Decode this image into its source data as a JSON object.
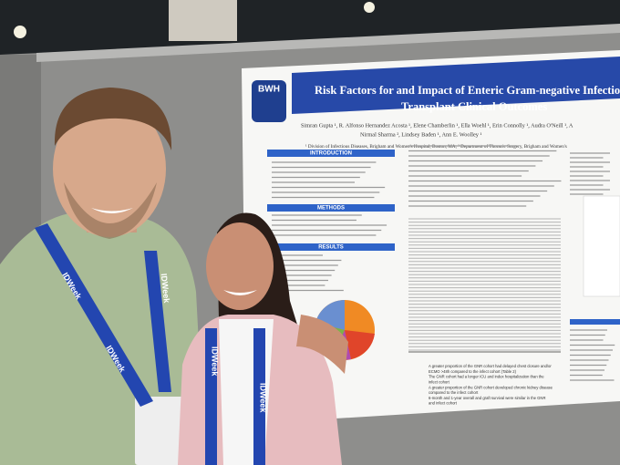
{
  "poster": {
    "logo": "BWH",
    "title": [
      "Risk Factors for and Impact of Enteric Gram-negative Infections o",
      "Transplant Clinical Outcomes"
    ],
    "authors": [
      "Simran Gupta ¹, R. Alfonso Hernandez Acosta ¹, Elene Chamberlin ¹, Ella Woehl ¹, Erin Connolly ¹, Audra O'Neill ¹, A",
      "Nirmal Sharma ², Lindsey Baden ¹, Ann E. Woolley ¹"
    ],
    "affiliation": "¹ Division of Infectious Diseases, Brigham and Women's Hospital, Boston, MA, ² Department of Thoracic Surgery, Brigham and Women's",
    "sections": [
      "INTRODUCTION",
      "METHODS",
      "RESULTS"
    ],
    "bullets": [
      "A greater proportion of the GNR cohort had delayed chest closure and/or",
      "ECMO >48h compared to the infect cohort (Table 2)",
      "The GNR cohort had a longer ICU and index hospitalization than the",
      "infect cohort",
      "A greater proportion of the GNR cohort developed chronic kidney disease",
      "compared to the infect cohort",
      "6-month and 1-year overall and graft survival were similar in the GNR",
      "and infect cohort"
    ]
  },
  "lanyard": "IDWeek"
}
